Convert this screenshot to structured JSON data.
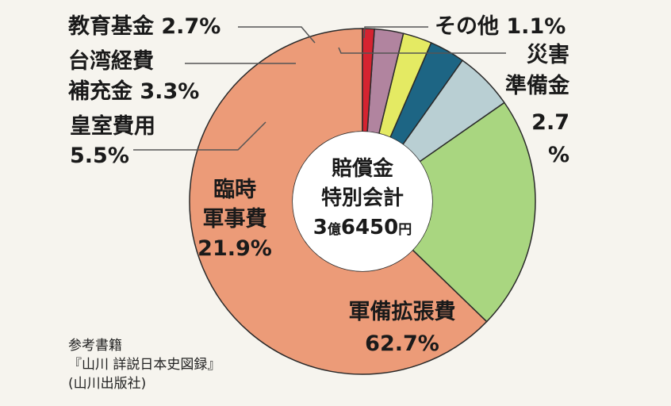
{
  "chart_data": {
    "type": "pie",
    "center_label": [
      "賠償金",
      "特別会計",
      "3億6450円"
    ],
    "center_amount_number": "3",
    "center_amount_unit_oku": "億",
    "center_amount_rest": "6450",
    "center_amount_unit_yen": "円",
    "slices": [
      {
        "label": "軍備拡張費",
        "value": 62.7,
        "color": "#ec9b78",
        "label_lines": [
          "軍備拡張費",
          "62.7%"
        ]
      },
      {
        "label": "臨時軍事費",
        "value": 21.9,
        "color": "#a9d680",
        "label_lines": [
          "臨時",
          "軍事費",
          "21.9%"
        ]
      },
      {
        "label": "皇室費用",
        "value": 5.5,
        "color": "#b9cfd3",
        "label_lines": [
          "皇室費用",
          "5.5%"
        ]
      },
      {
        "label": "台湾経費補充金",
        "value": 3.3,
        "color": "#1d6584",
        "label_lines": [
          "台湾経費",
          "補充金 3.3%"
        ]
      },
      {
        "label": "教育基金",
        "value": 2.7,
        "color": "#e4ea63",
        "label_lines": [
          "教育基金 2.7%"
        ]
      },
      {
        "label": "災害準備金",
        "value": 2.7,
        "color": "#b1849f",
        "label_lines": [
          "災害",
          "準備金",
          "2.7",
          "%"
        ]
      },
      {
        "label": "その他",
        "value": 1.1,
        "color": "#d52330",
        "label_lines": [
          "その他 1.1%"
        ]
      }
    ]
  },
  "source": {
    "line1": "参考書籍",
    "line2": "『山川 詳説日本史図録』",
    "line3": "(山川出版社)"
  }
}
